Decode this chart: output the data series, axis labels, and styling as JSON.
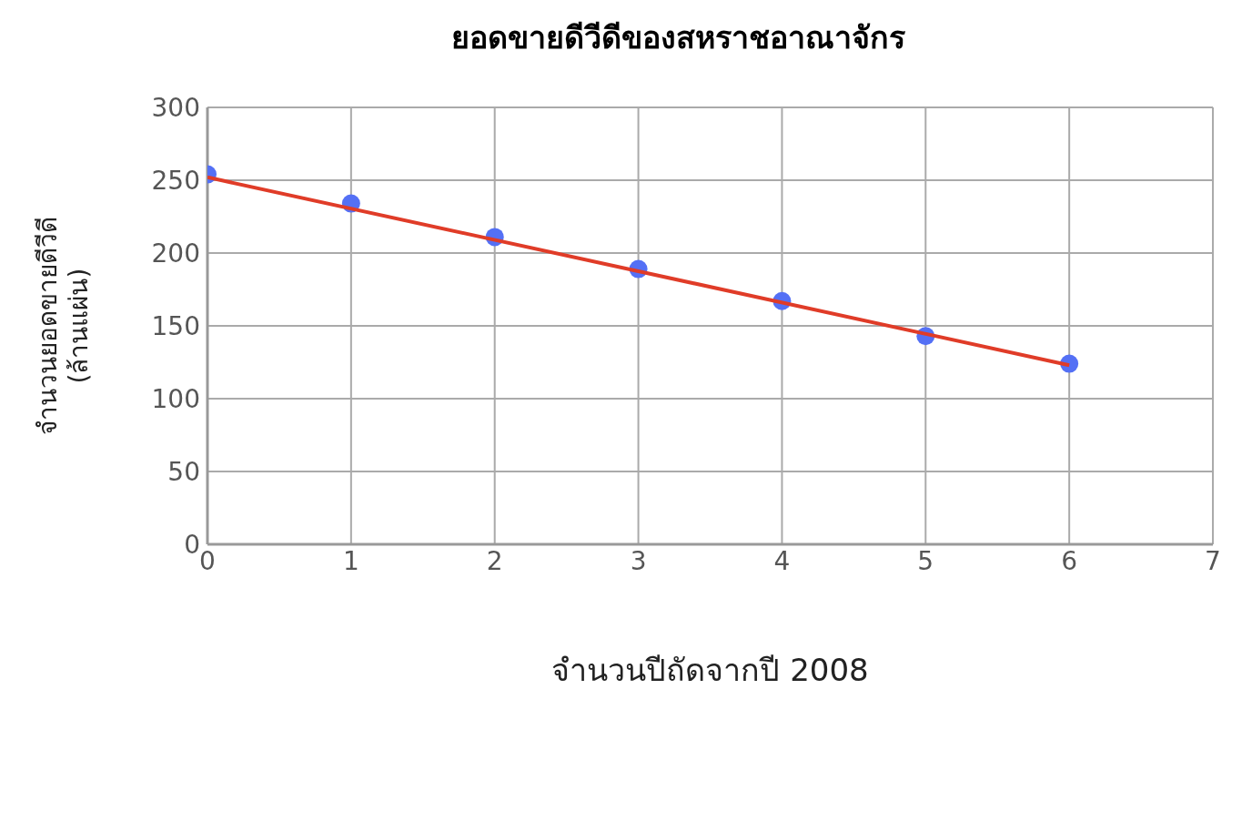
{
  "chart_data": {
    "type": "scatter",
    "title": "ยอดขายดีวีดีของสหราชอาณาจักร",
    "xlabel": "จำนวนปีถัดจากปี 2008",
    "ylabel": "จำนวนยอดขายดีวีดี\n(ล้านแผ่น)",
    "series": [
      {
        "color": "#5470f5",
        "marker": "circle",
        "x": [
          0,
          1,
          2,
          3,
          4,
          5,
          6
        ],
        "values": [
          254,
          234,
          211,
          189,
          167,
          143,
          124
        ]
      },
      {
        "type": "line",
        "color": "#e03c28",
        "marker": "none",
        "line_style": "solid",
        "x": [
          0,
          6
        ],
        "values": [
          252,
          123
        ]
      }
    ],
    "xlim": [
      0,
      7
    ],
    "xticks": [
      0,
      1,
      2,
      3,
      4,
      5,
      6,
      7
    ],
    "ylim": [
      0,
      300
    ],
    "yticks": [
      0,
      50,
      100,
      150,
      200,
      250,
      300
    ],
    "grid": true
  }
}
